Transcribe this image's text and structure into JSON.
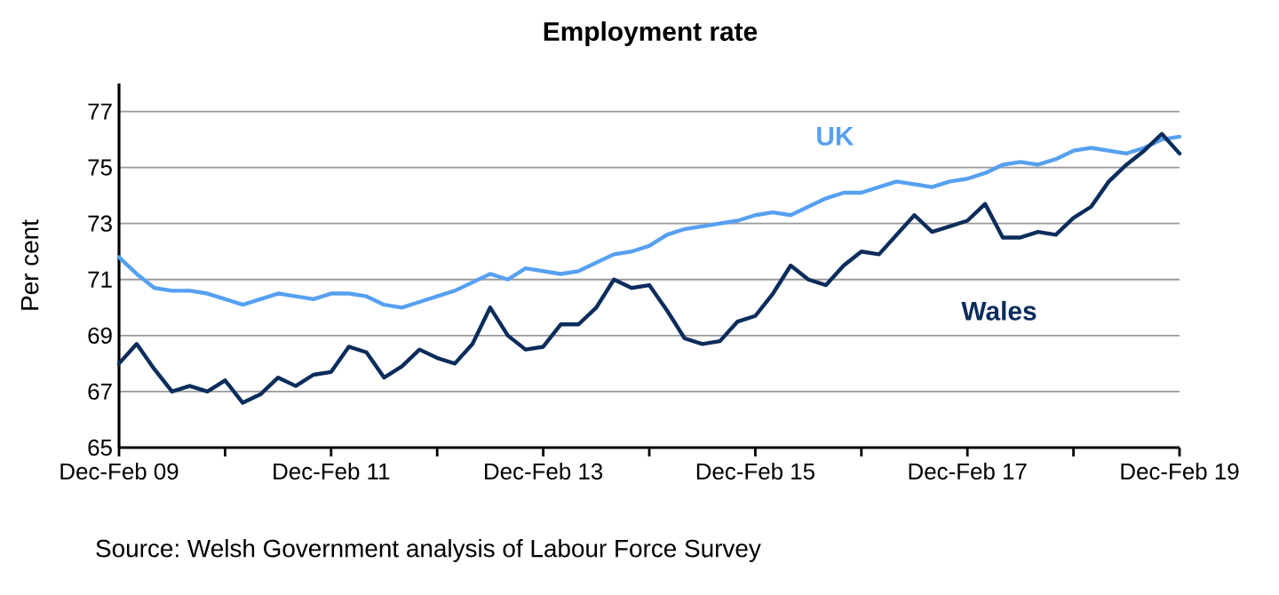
{
  "chart_data": {
    "type": "line",
    "title": "Employment rate",
    "ylabel": "Per cent",
    "annotations": [
      "Source: Welsh Government analysis of Labour Force Survey"
    ],
    "categories": [
      "Dec-Feb 09",
      null,
      null,
      null,
      null,
      null,
      null,
      null,
      null,
      null,
      null,
      null,
      "Dec-Feb 11",
      null,
      null,
      null,
      null,
      null,
      null,
      null,
      null,
      null,
      null,
      null,
      "Dec-Feb 13",
      null,
      null,
      null,
      null,
      null,
      null,
      null,
      null,
      null,
      null,
      null,
      "Dec-Feb 15",
      null,
      null,
      null,
      null,
      null,
      null,
      null,
      null,
      null,
      null,
      null,
      "Dec-Feb 17",
      null,
      null,
      null,
      null,
      null,
      null,
      null,
      null,
      null,
      null,
      null,
      "Dec-Feb 19"
    ],
    "ylim": [
      65,
      78
    ],
    "yticks": [
      65,
      67,
      69,
      71,
      73,
      75,
      77
    ],
    "grid": "y",
    "series": [
      {
        "name": "UK",
        "color": "#56a0f0",
        "values": [
          71.8,
          71.2,
          70.7,
          70.6,
          70.6,
          70.5,
          70.3,
          70.1,
          70.3,
          70.5,
          70.4,
          70.3,
          70.5,
          70.5,
          70.4,
          70.1,
          70.0,
          70.2,
          70.4,
          70.6,
          70.9,
          71.2,
          71.0,
          71.4,
          71.3,
          71.2,
          71.3,
          71.6,
          71.9,
          72.0,
          72.2,
          72.6,
          72.8,
          72.9,
          73.0,
          73.1,
          73.3,
          73.4,
          73.3,
          73.6,
          73.9,
          74.1,
          74.1,
          74.3,
          74.5,
          74.4,
          74.3,
          74.5,
          74.6,
          74.8,
          75.1,
          75.2,
          75.1,
          75.3,
          75.6,
          75.7,
          75.6,
          75.5,
          75.7,
          76.0,
          76.1
        ]
      },
      {
        "name": "Wales",
        "color": "#0b2d5c",
        "values": [
          68.0,
          68.7,
          67.8,
          67.0,
          67.2,
          67.0,
          67.4,
          66.6,
          66.9,
          67.5,
          67.2,
          67.6,
          67.7,
          68.6,
          68.4,
          67.5,
          67.9,
          68.5,
          68.2,
          68.0,
          68.7,
          70.0,
          69.0,
          68.5,
          68.6,
          69.4,
          69.4,
          70.0,
          71.0,
          70.7,
          70.8,
          69.9,
          68.9,
          68.7,
          68.8,
          69.5,
          69.7,
          70.5,
          71.5,
          71.0,
          70.8,
          71.5,
          72.0,
          71.9,
          72.6,
          73.3,
          72.7,
          72.9,
          73.1,
          73.7,
          72.5,
          72.5,
          72.7,
          72.6,
          73.2,
          73.6,
          74.5,
          75.1,
          75.6,
          76.2,
          75.5
        ]
      }
    ]
  }
}
